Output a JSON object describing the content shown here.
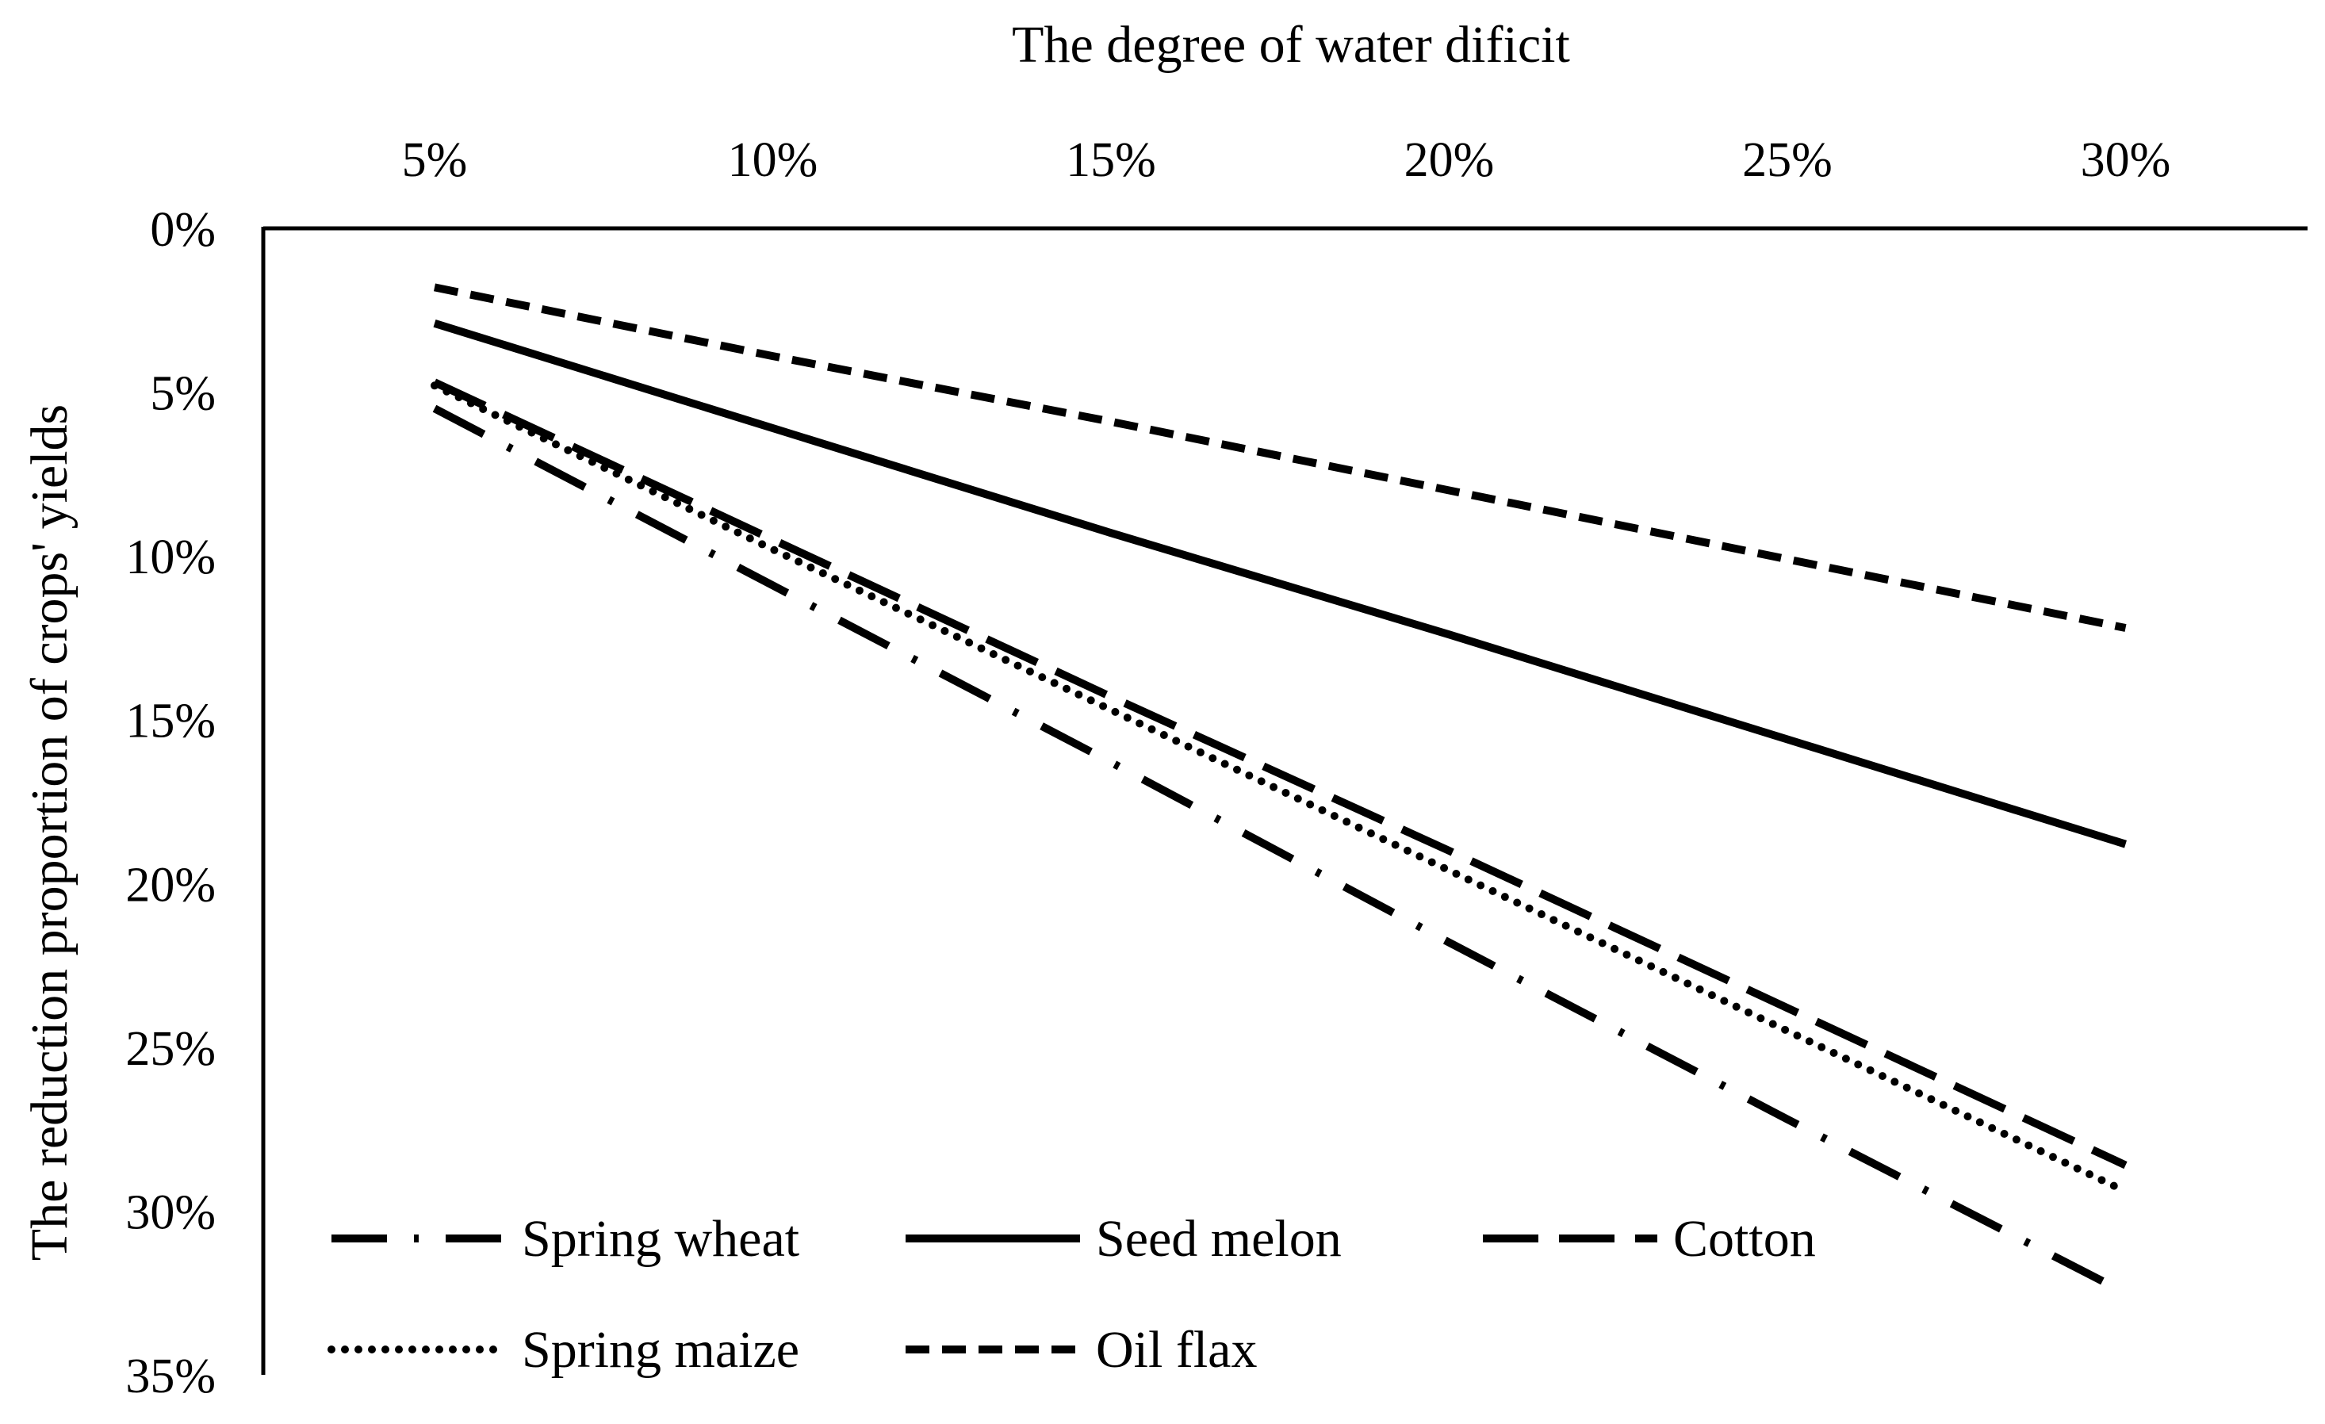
{
  "chart_data": {
    "type": "line",
    "title": "",
    "xlabel": "The degree of water dificit",
    "ylabel": "The reduction proportion of  crops' yields",
    "x_axis_position": "top",
    "y_axis_inverted": true,
    "categories": [
      "5%",
      "10%",
      "15%",
      "20%",
      "25%",
      "30%"
    ],
    "x": [
      5,
      10,
      15,
      20,
      25,
      30
    ],
    "ylim": [
      0,
      35
    ],
    "yticks": [
      0,
      5,
      10,
      15,
      20,
      25,
      30,
      35
    ],
    "ytick_labels": [
      "0%",
      "5%",
      "10%",
      "15%",
      "20%",
      "25%",
      "30%",
      "35%"
    ],
    "grid": false,
    "legend_position": "bottom-left",
    "series": [
      {
        "name": "Spring wheat",
        "style": "long-dash-dot",
        "values": [
          5.5,
          10.9,
          16.3,
          21.8,
          27.2,
          32.5
        ]
      },
      {
        "name": "Seed melon",
        "style": "solid",
        "values": [
          2.9,
          6.1,
          9.3,
          12.4,
          15.6,
          18.8
        ]
      },
      {
        "name": "Cotton",
        "style": "long-dash",
        "values": [
          4.7,
          9.5,
          14.3,
          19.0,
          23.8,
          28.6
        ]
      },
      {
        "name": "Spring maize",
        "style": "dotted",
        "values": [
          4.8,
          9.8,
          14.7,
          19.6,
          24.5,
          29.4
        ]
      },
      {
        "name": "Oil flax",
        "style": "dashed",
        "values": [
          1.8,
          3.9,
          5.9,
          8.0,
          10.1,
          12.2
        ]
      }
    ],
    "colors": {
      "line": "#000000",
      "background": "#ffffff"
    }
  }
}
